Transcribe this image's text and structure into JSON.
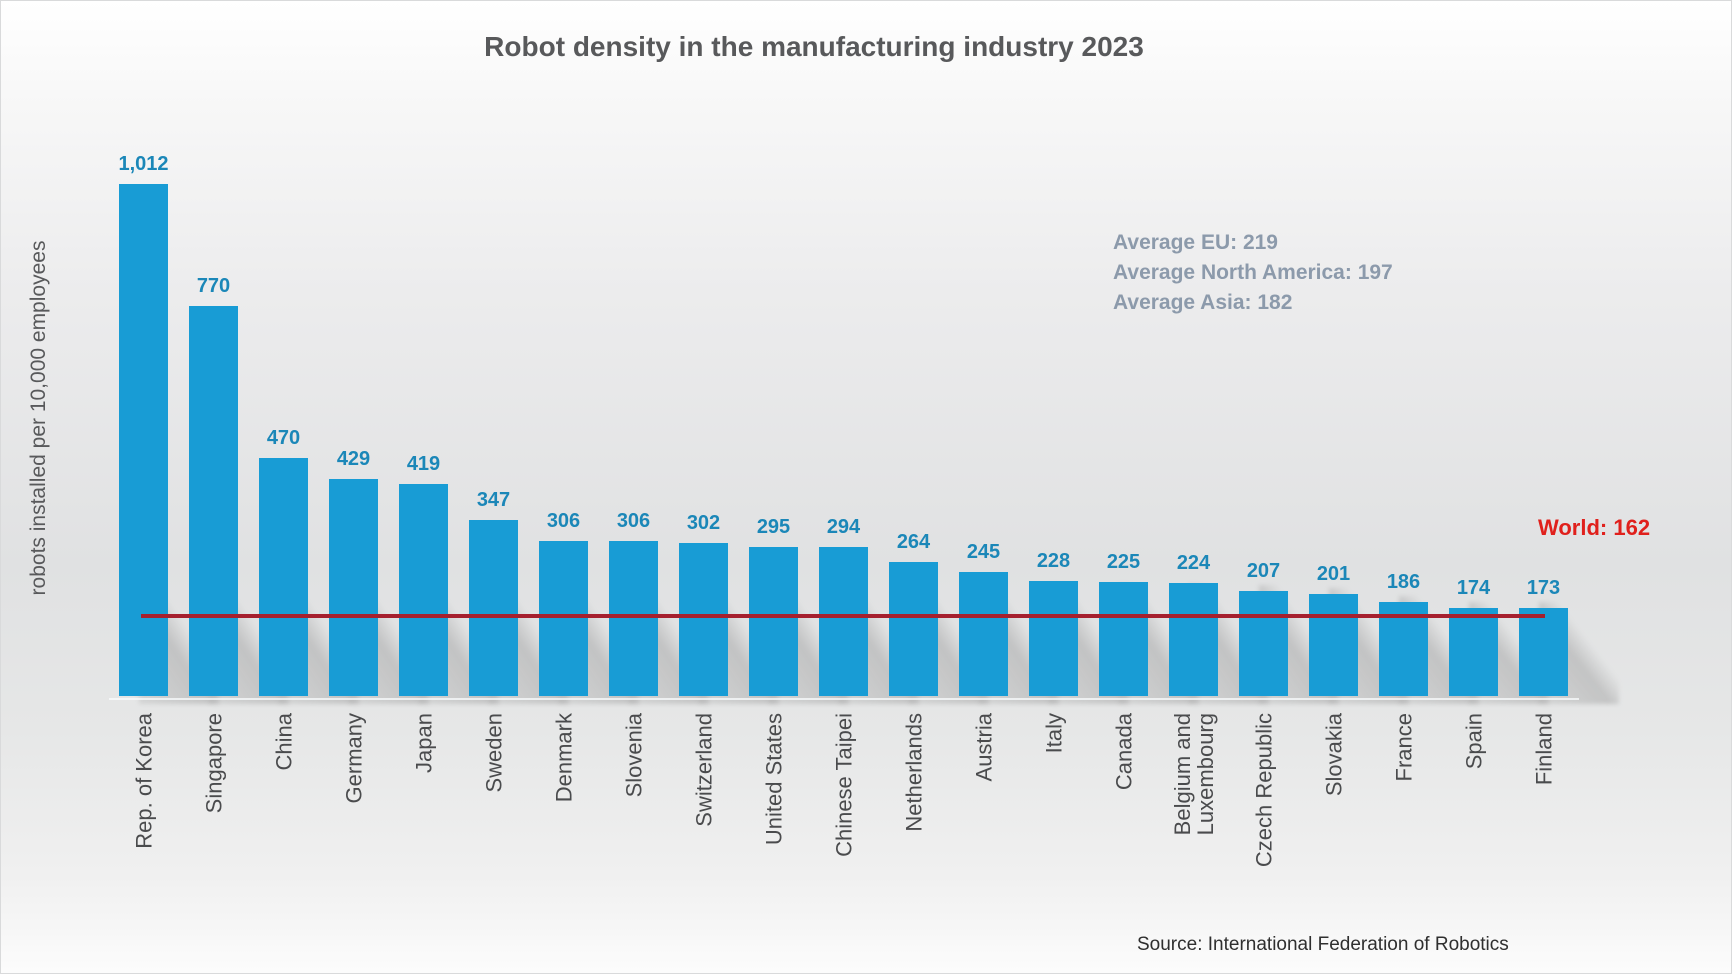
{
  "title": "Robot density in the manufacturing industry 2023",
  "y_axis_label": "robots installed per 10,000 employees",
  "source_text": "Source: International Federation of Robotics",
  "annotations": {
    "average_lines": [
      "Average EU: 219",
      "Average North America: 197",
      "Average Asia: 182"
    ],
    "world_label": "World: 162"
  },
  "colors": {
    "bar": "#189CD5",
    "value_label": "#1B87B8",
    "title": "#58595B",
    "category_label": "#4A4B4D",
    "average_text": "#8C9AAB",
    "world_label": "#E0201C",
    "reference_line": "#A6202F",
    "source": "#2F2F2F"
  },
  "chart_data": {
    "type": "bar",
    "bar_orientation": "vertical",
    "title": "Robot density in the manufacturing industry 2023",
    "xlabel": "",
    "ylabel": "robots installed per 10,000 employees",
    "categories": [
      "Rep. of Korea",
      "Singapore",
      "China",
      "Germany",
      "Japan",
      "Sweden",
      "Denmark",
      "Slovenia",
      "Switzerland",
      "United States",
      "Chinese Taipei",
      "Netherlands",
      "Austria",
      "Italy",
      "Canada",
      "Belgium and\nLuxembourg",
      "Czech Republic",
      "Slovakia",
      "France",
      "Spain",
      "Finland"
    ],
    "values": [
      1012,
      770,
      470,
      429,
      419,
      347,
      306,
      306,
      302,
      295,
      294,
      264,
      245,
      228,
      225,
      224,
      207,
      201,
      186,
      174,
      173
    ],
    "value_labels": [
      "1,012",
      "770",
      "470",
      "429",
      "419",
      "347",
      "306",
      "306",
      "302",
      "295",
      "294",
      "264",
      "245",
      "228",
      "225",
      "224",
      "207",
      "201",
      "186",
      "174",
      "173"
    ],
    "reference_line": {
      "label": "World: 162",
      "value": 162
    },
    "regional_averages": [
      {
        "label": "Average EU",
        "value": 219
      },
      {
        "label": "Average North America",
        "value": 197
      },
      {
        "label": "Average Asia",
        "value": 182
      }
    ],
    "ylim": [
      0,
      1050
    ],
    "grid": false,
    "legend": false,
    "source": "Source: International Federation of Robotics"
  }
}
